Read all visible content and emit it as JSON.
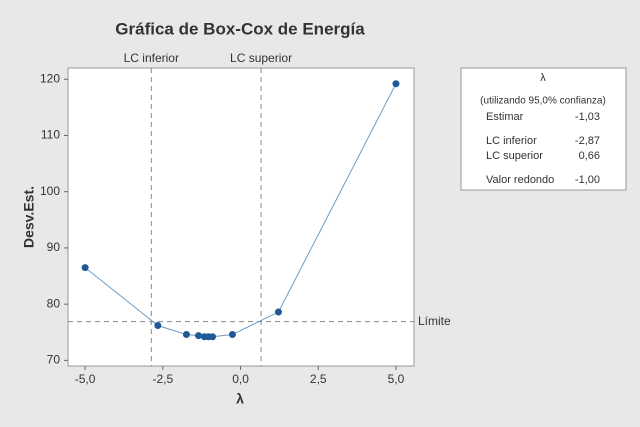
{
  "chart_data": {
    "type": "line",
    "title": "Gráfica de Box-Cox de Energía",
    "x_label": "λ",
    "y_label": "Desv.Est.",
    "x": [
      -5,
      -2.66,
      -1.74,
      -1.35,
      -1.16,
      -1.03,
      -0.9,
      -0.26,
      1.22,
      5
    ],
    "series": [
      {
        "name": "Desv.Est.",
        "color": "#1f5a96",
        "line_color": "#6d9cc6",
        "values": [
          86.5,
          76.2,
          74.6,
          74.4,
          74.2,
          74.2,
          74.2,
          74.6,
          78.6,
          119.2
        ]
      }
    ],
    "xlim": [
      -5.55,
      5.58
    ],
    "ylim": [
      69,
      122
    ],
    "xticks": [
      {
        "value": -5,
        "label": "-5,0"
      },
      {
        "value": -2.5,
        "label": "-2,5"
      },
      {
        "value": 0,
        "label": "0,0"
      },
      {
        "value": 2.5,
        "label": "2,5"
      },
      {
        "value": 5,
        "label": "5,0"
      }
    ],
    "yticks": [
      70,
      80,
      90,
      100,
      110,
      120
    ],
    "x_ref_lines": [
      {
        "label": "LC inferior",
        "value": -2.87
      },
      {
        "label": "LC superior",
        "value": 0.66
      }
    ],
    "y_ref_lines": [
      {
        "label": "Límite",
        "value": 76.9
      }
    ],
    "legend_table": {
      "title": "λ",
      "subtitle": "(utilizando 95,0% confianza)",
      "rows": [
        [
          "Estimar",
          "-1,03"
        ],
        [
          "LC inferior",
          "-2,87"
        ],
        [
          "LC superior",
          "0,66"
        ],
        [
          "Valor redondo",
          "-1,00"
        ]
      ]
    }
  }
}
